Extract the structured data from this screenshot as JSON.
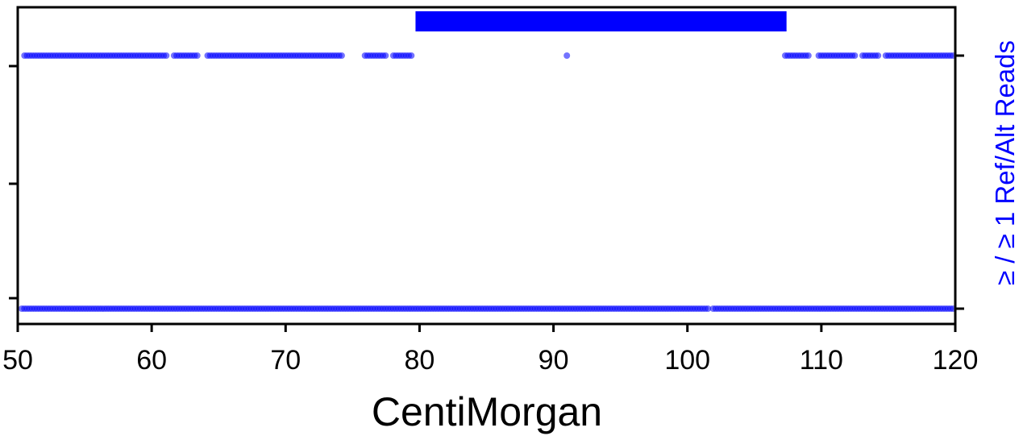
{
  "chart_data": {
    "type": "scatter",
    "title": "",
    "xlabel": "CentiMorgan",
    "right_ylabel": "≥ / ≥  1 Ref/Alt Reads",
    "xlim": [
      50,
      120
    ],
    "ylim": [
      0,
      1.05
    ],
    "x_ticks": [
      50,
      60,
      70,
      80,
      90,
      100,
      110,
      120
    ],
    "x_tick_labels": [
      "50",
      "60",
      "70",
      "80",
      "90",
      "100",
      "110",
      "120"
    ],
    "left_y_ticks": [
      0.04,
      0.5,
      0.96
    ],
    "right_y_ticks": [
      0,
      1
    ],
    "grid": false,
    "legend": "none",
    "color": "#0000ff",
    "highlight_region": {
      "x_start": 79.7,
      "x_end": 107.4,
      "y_low": 1.03,
      "y_high": 1.1
    },
    "series": [
      {
        "y": 1,
        "x_start": 50.5,
        "x_end": 79.5,
        "gaps": [
          [
            61.1,
            61.6
          ],
          [
            63.5,
            64.1
          ],
          [
            74.2,
            75.8
          ],
          [
            77.5,
            77.9
          ]
        ]
      },
      {
        "y": 1,
        "x_points": [
          91.0
        ]
      },
      {
        "y": 1,
        "x_start": 107.3,
        "x_end": 120.0,
        "gaps": [
          [
            109.2,
            109.7
          ],
          [
            112.6,
            113.0
          ],
          [
            114.3,
            114.8
          ]
        ]
      },
      {
        "y": 0,
        "x_start": 50.3,
        "x_end": 120.0,
        "gaps": [
          [
            101.7,
            101.9
          ]
        ]
      }
    ]
  }
}
